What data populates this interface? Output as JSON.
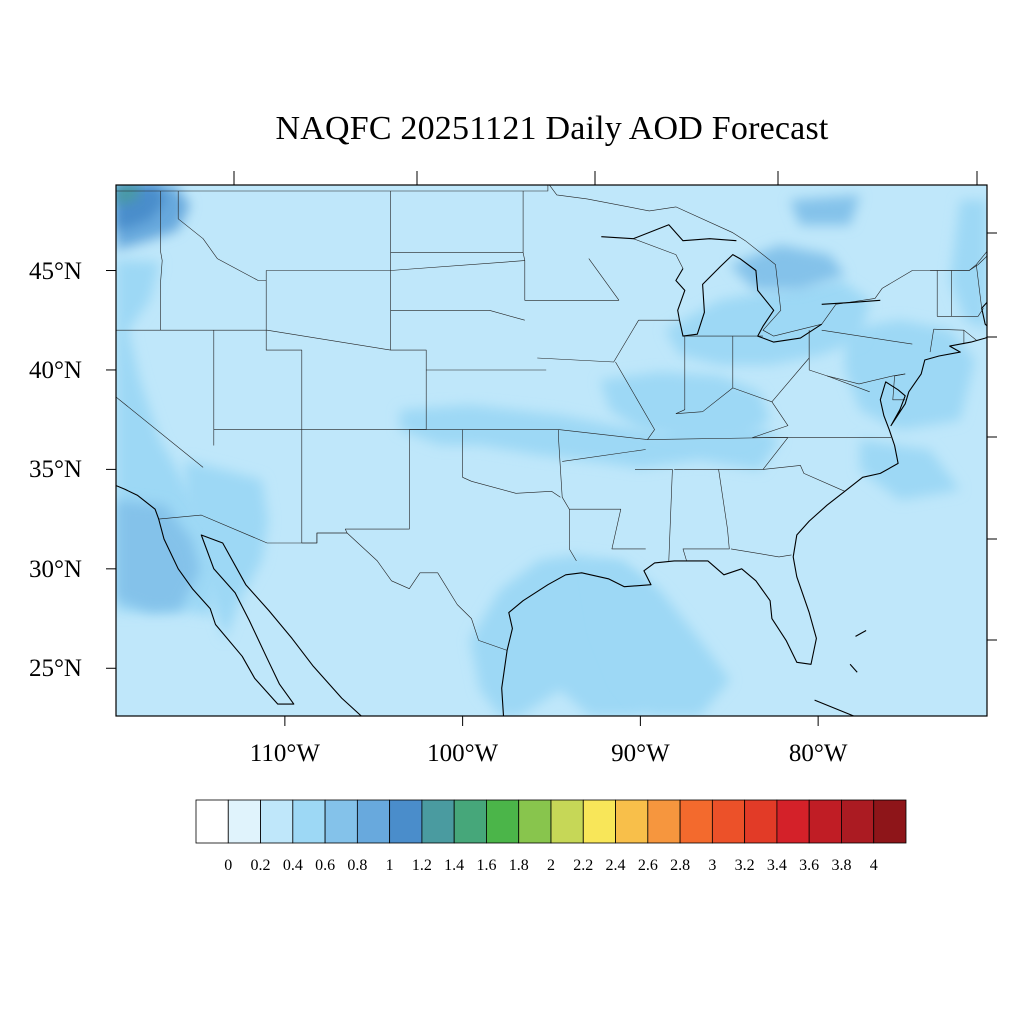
{
  "title": "NAQFC 20251121 Daily AOD Forecast",
  "map": {
    "lon_range": [
      -119.5,
      -70.5
    ],
    "lat_range": [
      22.6,
      49.3
    ],
    "lat_ticks": [
      {
        "value": 45,
        "label": "45°N"
      },
      {
        "value": 40,
        "label": "40°N"
      },
      {
        "value": 35,
        "label": "35°N"
      },
      {
        "value": 30,
        "label": "30°N"
      },
      {
        "value": 25,
        "label": "25°N"
      }
    ],
    "lon_ticks": [
      {
        "value": -110,
        "label": "110°W"
      },
      {
        "value": -100,
        "label": "100°W"
      },
      {
        "value": -90,
        "label": "90°W"
      },
      {
        "value": -80,
        "label": "80°W"
      }
    ],
    "background_aod": 0.2,
    "aod_regions": [
      {
        "name": "pacific-offshore",
        "aod": 0.4
      },
      {
        "name": "southwest-desert",
        "aod": 0.4
      },
      {
        "name": "baja-offshore",
        "aod": 0.6
      },
      {
        "name": "washington-coast",
        "aod": 0.8
      },
      {
        "name": "northwest-corner",
        "aod": 1.0
      },
      {
        "name": "northwest-tip",
        "aod": 1.2
      },
      {
        "name": "central-plains-band",
        "aod": 0.4
      },
      {
        "name": "ohio-valley",
        "aod": 0.4
      },
      {
        "name": "mid-atlantic-offshore",
        "aod": 0.4
      },
      {
        "name": "great-lakes-northeast",
        "aod": 0.4
      },
      {
        "name": "quebec-maritimes",
        "aod": 0.6
      },
      {
        "name": "gulf-coast",
        "aod": 0.4
      },
      {
        "name": "florida-gulf",
        "aod": 0.4
      }
    ]
  },
  "colorbar": {
    "levels": [
      0,
      0.2,
      0.4,
      0.6,
      0.8,
      1,
      1.2,
      1.4,
      1.6,
      1.8,
      2,
      2.2,
      2.4,
      2.6,
      2.8,
      3,
      3.2,
      3.4,
      3.6,
      3.8,
      4
    ],
    "labels": [
      "0",
      "0.2",
      "0.4",
      "0.6",
      "0.8",
      "1",
      "1.2",
      "1.4",
      "1.6",
      "1.8",
      "2",
      "2.2",
      "2.4",
      "2.6",
      "2.8",
      "3",
      "3.2",
      "3.4",
      "3.6",
      "3.8",
      "4"
    ],
    "colors": [
      "#ffffff",
      "#e0f3fc",
      "#bfe7fa",
      "#9dd8f5",
      "#84c2ea",
      "#68a9dd",
      "#4a8dcb",
      "#4a9ba0",
      "#46a77a",
      "#4bb549",
      "#88c54d",
      "#c6d757",
      "#f8e659",
      "#f8bf4a",
      "#f6963e",
      "#f36a2d",
      "#ec5129",
      "#e23b27",
      "#d42129",
      "#c01d25",
      "#ab1b22",
      "#8e1519"
    ]
  }
}
